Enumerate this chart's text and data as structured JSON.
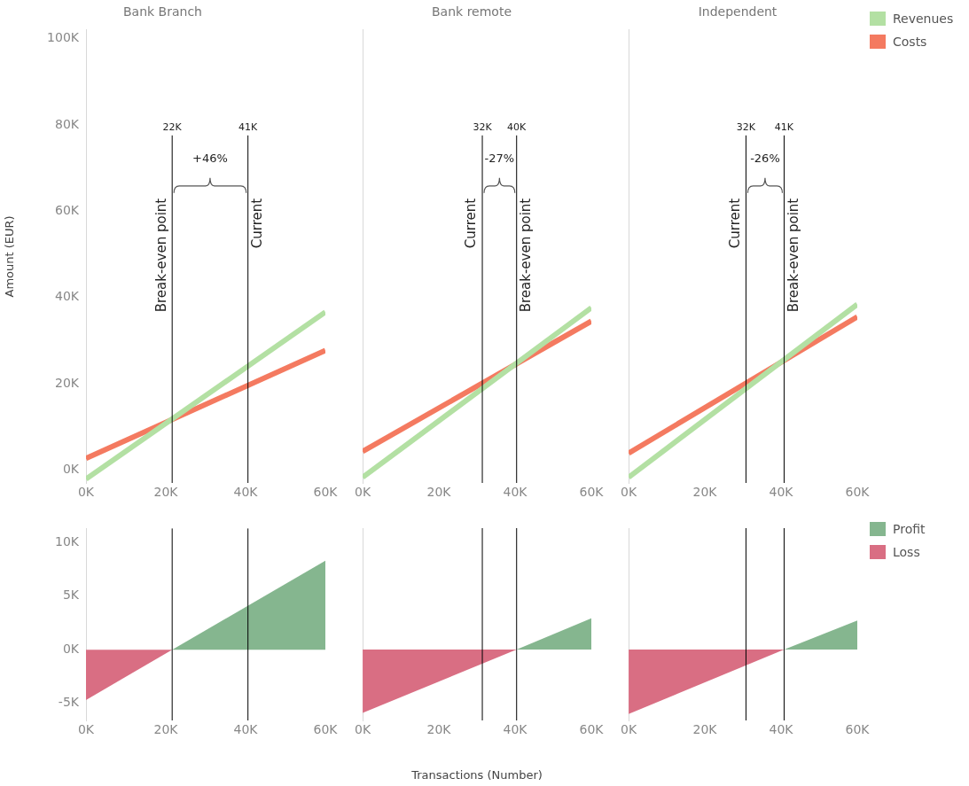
{
  "chart_data": [
    {
      "type": "line",
      "title": "Bank Branch",
      "ylabel": "Amount (EUR)",
      "xlim": [
        0,
        60000
      ],
      "xticks": [
        {
          "value": 0,
          "label": "0K"
        },
        {
          "value": 20000,
          "label": "20K"
        },
        {
          "value": 40000,
          "label": "40K"
        },
        {
          "value": 60000,
          "label": "60K"
        }
      ],
      "ylim": [
        -3000,
        102000
      ],
      "yticks": [
        {
          "value": 0,
          "label": "0K"
        },
        {
          "value": 20000,
          "label": "20K"
        },
        {
          "value": 40000,
          "label": "40K"
        },
        {
          "value": 60000,
          "label": "60K"
        },
        {
          "value": 80000,
          "label": "80K"
        },
        {
          "value": 100000,
          "label": "100K"
        }
      ],
      "grid": false,
      "marker": "none",
      "series": [
        {
          "color": "#b3e0a3",
          "x": [
            0,
            60000
          ],
          "values": [
            -2100,
            36600
          ]
        },
        {
          "color": "#f47a60",
          "x": [
            0,
            60000
          ],
          "values": [
            2700,
            27700
          ]
        }
      ],
      "ref_lines": [
        {
          "axis": "x",
          "value": 21600,
          "label": "Break-even point"
        },
        {
          "axis": "x",
          "value": 40600,
          "label": "Current"
        }
      ],
      "annotations": [
        "22K",
        "41K",
        "+46%"
      ]
    },
    {
      "type": "line",
      "title": "Bank remote",
      "xlim": [
        0,
        60000
      ],
      "xticks": [
        {
          "value": 0,
          "label": "0K"
        },
        {
          "value": 20000,
          "label": "20K"
        },
        {
          "value": 40000,
          "label": "40K"
        },
        {
          "value": 60000,
          "label": "60K"
        }
      ],
      "ylim": [
        -3000,
        102000
      ],
      "tick_labels": "x",
      "grid": false,
      "marker": "none",
      "series": [
        {
          "color": "#b3e0a3",
          "x": [
            0,
            60000
          ],
          "values": [
            -1700,
            37600
          ]
        },
        {
          "color": "#f47a60",
          "x": [
            0,
            60000
          ],
          "values": [
            4300,
            34500
          ]
        }
      ],
      "ref_lines": [
        {
          "axis": "x",
          "value": 31400,
          "label": "Current"
        },
        {
          "axis": "x",
          "value": 40400,
          "label": "Break-even point"
        }
      ],
      "annotations": [
        "32K",
        "40K",
        "-27%"
      ]
    },
    {
      "type": "line",
      "title": "Independent",
      "xlim": [
        0,
        60000
      ],
      "xticks": [
        {
          "value": 0,
          "label": "0K"
        },
        {
          "value": 20000,
          "label": "20K"
        },
        {
          "value": 40000,
          "label": "40K"
        },
        {
          "value": 60000,
          "label": "60K"
        }
      ],
      "ylim": [
        -3000,
        102000
      ],
      "tick_labels": "x",
      "grid": false,
      "marker": "none",
      "legend": "top right",
      "series": [
        {
          "name": "Revenues",
          "color": "#b3e0a3",
          "x": [
            0,
            60000
          ],
          "values": [
            -1700,
            38400
          ]
        },
        {
          "name": "Costs",
          "color": "#f47a60",
          "x": [
            0,
            60000
          ],
          "values": [
            3900,
            35500
          ]
        }
      ],
      "ref_lines": [
        {
          "axis": "x",
          "value": 30800,
          "label": "Current"
        },
        {
          "axis": "x",
          "value": 40800,
          "label": "Break-even point"
        }
      ],
      "annotations": [
        "32K",
        "41K",
        "-26%"
      ]
    },
    {
      "type": "area",
      "xlim": [
        0,
        60000
      ],
      "xticks": [
        {
          "value": 0,
          "label": "0K"
        },
        {
          "value": 20000,
          "label": "20K"
        },
        {
          "value": 40000,
          "label": "40K"
        },
        {
          "value": 60000,
          "label": "60K"
        }
      ],
      "ylim": [
        -6600,
        11300
      ],
      "yticks": [
        {
          "value": -5000,
          "label": "-5K"
        },
        {
          "value": 0,
          "label": "0K"
        },
        {
          "value": 5000,
          "label": "5K"
        },
        {
          "value": 10000,
          "label": "10K"
        }
      ],
      "grid": false,
      "marker": "none",
      "series": [
        {
          "color": "#85b68f",
          "x": [
            21600,
            60000
          ],
          "values": [
            0,
            8300
          ]
        },
        {
          "color": "#d96e83",
          "x": [
            0,
            21600
          ],
          "values": [
            -4700,
            0
          ]
        }
      ],
      "ref_lines": [
        {
          "axis": "x",
          "value": 21600
        },
        {
          "axis": "x",
          "value": 40600
        }
      ]
    },
    {
      "type": "area",
      "xlabel": "Transactions (Number)",
      "xlim": [
        0,
        60000
      ],
      "xticks": [
        {
          "value": 0,
          "label": "0K"
        },
        {
          "value": 20000,
          "label": "20K"
        },
        {
          "value": 40000,
          "label": "40K"
        },
        {
          "value": 60000,
          "label": "60K"
        }
      ],
      "ylim": [
        -6600,
        11300
      ],
      "tick_labels": "x",
      "grid": false,
      "marker": "none",
      "series": [
        {
          "color": "#85b68f",
          "x": [
            40400,
            60000
          ],
          "values": [
            0,
            2900
          ]
        },
        {
          "color": "#d96e83",
          "x": [
            0,
            40400
          ],
          "values": [
            -5900,
            0
          ]
        }
      ],
      "ref_lines": [
        {
          "axis": "x",
          "value": 31400
        },
        {
          "axis": "x",
          "value": 40400
        }
      ]
    },
    {
      "type": "area",
      "xlim": [
        0,
        60000
      ],
      "xticks": [
        {
          "value": 0,
          "label": "0K"
        },
        {
          "value": 20000,
          "label": "20K"
        },
        {
          "value": 40000,
          "label": "40K"
        },
        {
          "value": 60000,
          "label": "60K"
        }
      ],
      "ylim": [
        -6600,
        11300
      ],
      "tick_labels": "x",
      "grid": false,
      "marker": "none",
      "legend": "top right",
      "series": [
        {
          "name": "Profit",
          "color": "#85b68f",
          "x": [
            40800,
            60000
          ],
          "values": [
            0,
            2700
          ]
        },
        {
          "name": "Loss",
          "color": "#d96e83",
          "x": [
            0,
            40800
          ],
          "values": [
            -6000,
            0
          ]
        }
      ],
      "ref_lines": [
        {
          "axis": "x",
          "value": 30800
        },
        {
          "axis": "x",
          "value": 40800
        }
      ]
    }
  ]
}
